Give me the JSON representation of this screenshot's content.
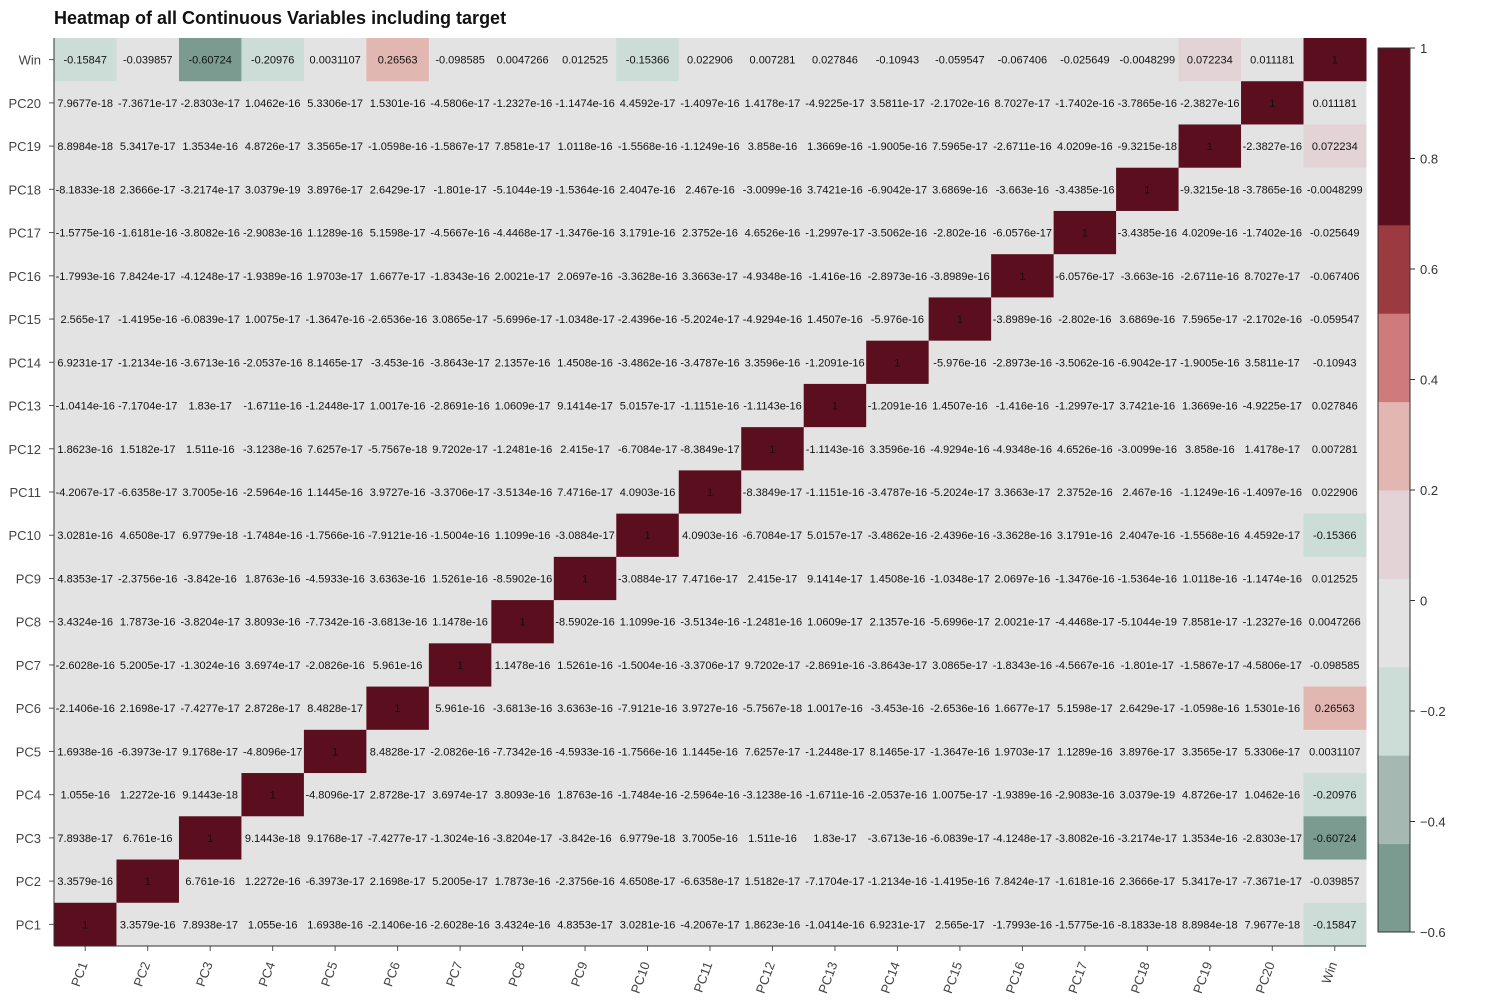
{
  "chart_data": {
    "type": "heatmap",
    "title": "Heatmap of all Continuous Variables including target",
    "x_labels": [
      "PC1",
      "PC2",
      "PC3",
      "PC4",
      "PC5",
      "PC6",
      "PC7",
      "PC8",
      "PC9",
      "PC10",
      "PC11",
      "PC12",
      "PC13",
      "PC14",
      "PC15",
      "PC16",
      "PC17",
      "PC18",
      "PC19",
      "PC20",
      "Win"
    ],
    "y_labels_top_to_bottom": [
      "Win",
      "PC20",
      "PC19",
      "PC18",
      "PC17",
      "PC16",
      "PC15",
      "PC14",
      "PC13",
      "PC12",
      "PC11",
      "PC10",
      "PC9",
      "PC8",
      "PC7",
      "PC6",
      "PC5",
      "PC4",
      "PC3",
      "PC2",
      "PC1"
    ],
    "rows": [
      [
        "-0.15847",
        "-0.039857",
        "-0.60724",
        "-0.20976",
        "0.0031107",
        "0.26563",
        "-0.098585",
        "0.0047266",
        "0.012525",
        "-0.15366",
        "0.022906",
        "0.007281",
        "0.027846",
        "-0.10943",
        "-0.059547",
        "-0.067406",
        "-0.025649",
        "-0.0048299",
        "0.072234",
        "0.011181",
        "1"
      ],
      [
        "7.9677e-18",
        "-7.3671e-17",
        "-2.8303e-17",
        "1.0462e-16",
        "5.3306e-17",
        "1.5301e-16",
        "-4.5806e-17",
        "-1.2327e-16",
        "-1.1474e-16",
        "4.4592e-17",
        "-1.4097e-16",
        "1.4178e-17",
        "-4.9225e-17",
        "3.5811e-17",
        "-2.1702e-16",
        "8.7027e-17",
        "-1.7402e-16",
        "-3.7865e-16",
        "-2.3827e-16",
        "1",
        "0.011181"
      ],
      [
        "8.8984e-18",
        "5.3417e-17",
        "1.3534e-16",
        "4.8726e-17",
        "3.3565e-17",
        "-1.0598e-16",
        "-1.5867e-17",
        "7.8581e-17",
        "1.0118e-16",
        "-1.5568e-16",
        "-1.1249e-16",
        "3.858e-16",
        "1.3669e-16",
        "-1.9005e-16",
        "7.5965e-17",
        "-2.6711e-16",
        "4.0209e-16",
        "-9.3215e-18",
        "1",
        "-2.3827e-16",
        "0.072234"
      ],
      [
        "-8.1833e-18",
        "2.3666e-17",
        "-3.2174e-17",
        "3.0379e-19",
        "3.8976e-17",
        "2.6429e-17",
        "-1.801e-17",
        "-5.1044e-19",
        "-1.5364e-16",
        "2.4047e-16",
        "2.467e-16",
        "-3.0099e-16",
        "3.7421e-16",
        "-6.9042e-17",
        "3.6869e-16",
        "-3.663e-16",
        "-3.4385e-16",
        "1",
        "-9.3215e-18",
        "-3.7865e-16",
        "-0.0048299"
      ],
      [
        "-1.5775e-16",
        "-1.6181e-16",
        "-3.8082e-16",
        "-2.9083e-16",
        "1.1289e-16",
        "5.1598e-17",
        "-4.5667e-16",
        "-4.4468e-17",
        "-1.3476e-16",
        "3.1791e-16",
        "2.3752e-16",
        "4.6526e-16",
        "-1.2997e-17",
        "-3.5062e-16",
        "-2.802e-16",
        "-6.0576e-17",
        "1",
        "-3.4385e-16",
        "4.0209e-16",
        "-1.7402e-16",
        "-0.025649"
      ],
      [
        "-1.7993e-16",
        "7.8424e-17",
        "-4.1248e-17",
        "-1.9389e-16",
        "1.9703e-17",
        "1.6677e-17",
        "-1.8343e-16",
        "2.0021e-17",
        "2.0697e-16",
        "-3.3628e-16",
        "3.3663e-17",
        "-4.9348e-16",
        "-1.416e-16",
        "-2.8973e-16",
        "-3.8989e-16",
        "1",
        "-6.0576e-17",
        "-3.663e-16",
        "-2.6711e-16",
        "8.7027e-17",
        "-0.067406"
      ],
      [
        "2.565e-17",
        "-1.4195e-16",
        "-6.0839e-17",
        "1.0075e-17",
        "-1.3647e-16",
        "-2.6536e-16",
        "3.0865e-17",
        "-5.6996e-17",
        "-1.0348e-17",
        "-2.4396e-16",
        "-5.2024e-17",
        "-4.9294e-16",
        "1.4507e-16",
        "-5.976e-16",
        "1",
        "-3.8989e-16",
        "-2.802e-16",
        "3.6869e-16",
        "7.5965e-17",
        "-2.1702e-16",
        "-0.059547"
      ],
      [
        "6.9231e-17",
        "-1.2134e-16",
        "-3.6713e-16",
        "-2.0537e-16",
        "8.1465e-17",
        "-3.453e-16",
        "-3.8643e-17",
        "2.1357e-16",
        "1.4508e-16",
        "-3.4862e-16",
        "-3.4787e-16",
        "3.3596e-16",
        "-1.2091e-16",
        "1",
        "-5.976e-16",
        "-2.8973e-16",
        "-3.5062e-16",
        "-6.9042e-17",
        "-1.9005e-16",
        "3.5811e-17",
        "-0.10943"
      ],
      [
        "-1.0414e-16",
        "-7.1704e-17",
        "1.83e-17",
        "-1.6711e-16",
        "-1.2448e-17",
        "1.0017e-16",
        "-2.8691e-16",
        "1.0609e-17",
        "9.1414e-17",
        "5.0157e-17",
        "-1.1151e-16",
        "-1.1143e-16",
        "1",
        "-1.2091e-16",
        "1.4507e-16",
        "-1.416e-16",
        "-1.2997e-17",
        "3.7421e-16",
        "1.3669e-16",
        "-4.9225e-17",
        "0.027846"
      ],
      [
        "1.8623e-16",
        "1.5182e-17",
        "1.511e-16",
        "-3.1238e-16",
        "7.6257e-17",
        "-5.7567e-18",
        "9.7202e-17",
        "-1.2481e-16",
        "2.415e-17",
        "-6.7084e-17",
        "-8.3849e-17",
        "1",
        "-1.1143e-16",
        "3.3596e-16",
        "-4.9294e-16",
        "-4.9348e-16",
        "4.6526e-16",
        "-3.0099e-16",
        "3.858e-16",
        "1.4178e-17",
        "0.007281"
      ],
      [
        "-4.2067e-17",
        "-6.6358e-17",
        "3.7005e-16",
        "-2.5964e-16",
        "1.1445e-16",
        "3.9727e-16",
        "-3.3706e-17",
        "-3.5134e-16",
        "7.4716e-17",
        "4.0903e-16",
        "1",
        "-8.3849e-17",
        "-1.1151e-16",
        "-3.4787e-16",
        "-5.2024e-17",
        "3.3663e-17",
        "2.3752e-16",
        "2.467e-16",
        "-1.1249e-16",
        "-1.4097e-16",
        "0.022906"
      ],
      [
        "3.0281e-16",
        "4.6508e-17",
        "6.9779e-18",
        "-1.7484e-16",
        "-1.7566e-16",
        "-7.9121e-16",
        "-1.5004e-16",
        "1.1099e-16",
        "-3.0884e-17",
        "1",
        "4.0903e-16",
        "-6.7084e-17",
        "5.0157e-17",
        "-3.4862e-16",
        "-2.4396e-16",
        "-3.3628e-16",
        "3.1791e-16",
        "2.4047e-16",
        "-1.5568e-16",
        "4.4592e-17",
        "-0.15366"
      ],
      [
        "4.8353e-17",
        "-2.3756e-16",
        "-3.842e-16",
        "1.8763e-16",
        "-4.5933e-16",
        "3.6363e-16",
        "1.5261e-16",
        "-8.5902e-16",
        "1",
        "-3.0884e-17",
        "7.4716e-17",
        "2.415e-17",
        "9.1414e-17",
        "1.4508e-16",
        "-1.0348e-17",
        "2.0697e-16",
        "-1.3476e-16",
        "-1.5364e-16",
        "1.0118e-16",
        "-1.1474e-16",
        "0.012525"
      ],
      [
        "3.4324e-16",
        "1.7873e-16",
        "-3.8204e-17",
        "3.8093e-16",
        "-7.7342e-16",
        "-3.6813e-16",
        "1.1478e-16",
        "1",
        "-8.5902e-16",
        "1.1099e-16",
        "-3.5134e-16",
        "-1.2481e-16",
        "1.0609e-17",
        "2.1357e-16",
        "-5.6996e-17",
        "2.0021e-17",
        "-4.4468e-17",
        "-5.1044e-19",
        "7.8581e-17",
        "-1.2327e-16",
        "0.0047266"
      ],
      [
        "-2.6028e-16",
        "5.2005e-17",
        "-1.3024e-16",
        "3.6974e-17",
        "-2.0826e-16",
        "5.961e-16",
        "1",
        "1.1478e-16",
        "1.5261e-16",
        "-1.5004e-16",
        "-3.3706e-17",
        "9.7202e-17",
        "-2.8691e-16",
        "-3.8643e-17",
        "3.0865e-17",
        "-1.8343e-16",
        "-4.5667e-16",
        "-1.801e-17",
        "-1.5867e-17",
        "-4.5806e-17",
        "-0.098585"
      ],
      [
        "-2.1406e-16",
        "2.1698e-17",
        "-7.4277e-17",
        "2.8728e-17",
        "8.4828e-17",
        "1",
        "5.961e-16",
        "-3.6813e-16",
        "3.6363e-16",
        "-7.9121e-16",
        "3.9727e-16",
        "-5.7567e-18",
        "1.0017e-16",
        "-3.453e-16",
        "-2.6536e-16",
        "1.6677e-17",
        "5.1598e-17",
        "2.6429e-17",
        "-1.0598e-16",
        "1.5301e-16",
        "0.26563"
      ],
      [
        "1.6938e-16",
        "-6.3973e-17",
        "9.1768e-17",
        "-4.8096e-17",
        "1",
        "8.4828e-17",
        "-2.0826e-16",
        "-7.7342e-16",
        "-4.5933e-16",
        "-1.7566e-16",
        "1.1445e-16",
        "7.6257e-17",
        "-1.2448e-17",
        "8.1465e-17",
        "-1.3647e-16",
        "1.9703e-17",
        "1.1289e-16",
        "3.8976e-17",
        "3.3565e-17",
        "5.3306e-17",
        "0.0031107"
      ],
      [
        "1.055e-16",
        "1.2272e-16",
        "9.1443e-18",
        "1",
        "-4.8096e-17",
        "2.8728e-17",
        "3.6974e-17",
        "3.8093e-16",
        "1.8763e-16",
        "-1.7484e-16",
        "-2.5964e-16",
        "-3.1238e-16",
        "-1.6711e-16",
        "-2.0537e-16",
        "1.0075e-17",
        "-1.9389e-16",
        "-2.9083e-16",
        "3.0379e-19",
        "4.8726e-17",
        "1.0462e-16",
        "-0.20976"
      ],
      [
        "7.8938e-17",
        "6.761e-16",
        "1",
        "9.1443e-18",
        "9.1768e-17",
        "-7.4277e-17",
        "-1.3024e-16",
        "-3.8204e-17",
        "-3.842e-16",
        "6.9779e-18",
        "3.7005e-16",
        "1.511e-16",
        "1.83e-17",
        "-3.6713e-16",
        "-6.0839e-17",
        "-4.1248e-17",
        "-3.8082e-16",
        "-3.2174e-17",
        "1.3534e-16",
        "-2.8303e-17",
        "-0.60724"
      ],
      [
        "3.3579e-16",
        "1",
        "6.761e-16",
        "1.2272e-16",
        "-6.3973e-17",
        "2.1698e-17",
        "5.2005e-17",
        "1.7873e-16",
        "-2.3756e-16",
        "4.6508e-17",
        "-6.6358e-17",
        "1.5182e-17",
        "-7.1704e-17",
        "-1.2134e-16",
        "-1.4195e-16",
        "7.8424e-17",
        "-1.6181e-16",
        "2.3666e-17",
        "5.3417e-17",
        "-7.3671e-17",
        "-0.039857"
      ],
      [
        "1",
        "3.3579e-16",
        "7.8938e-17",
        "1.055e-16",
        "1.6938e-16",
        "-2.1406e-16",
        "-2.6028e-16",
        "3.4324e-16",
        "4.8353e-17",
        "3.0281e-16",
        "-4.2067e-17",
        "1.8623e-16",
        "-1.0414e-16",
        "6.9231e-17",
        "2.565e-17",
        "-1.7993e-16",
        "-1.5775e-16",
        "-8.1833e-18",
        "8.8984e-18",
        "7.9677e-18",
        "-0.15847"
      ]
    ],
    "colorbar": {
      "range": [
        -0.6,
        1
      ],
      "ticks": [
        "1",
        "0.8",
        "0.6",
        "0.4",
        "0.2",
        "0",
        "−0.2",
        "−0.4",
        "−0.6"
      ],
      "tick_values": [
        1,
        0.8,
        0.6,
        0.4,
        0.2,
        0,
        -0.2,
        -0.4,
        -0.6
      ],
      "bins": [
        {
          "from": -0.6,
          "to": -0.44,
          "color": "#7b9b91"
        },
        {
          "from": -0.44,
          "to": -0.28,
          "color": "#a5b9b2"
        },
        {
          "from": -0.28,
          "to": -0.12,
          "color": "#ccdcd6"
        },
        {
          "from": -0.12,
          "to": 0.04,
          "color": "#e3e3e3"
        },
        {
          "from": 0.04,
          "to": 0.2,
          "color": "#e3d3d6"
        },
        {
          "from": 0.2,
          "to": 0.36,
          "color": "#e2b7b1"
        },
        {
          "from": 0.36,
          "to": 0.52,
          "color": "#d07b7b"
        },
        {
          "from": 0.52,
          "to": 0.68,
          "color": "#9b3b40"
        },
        {
          "from": 0.68,
          "to": 1.0,
          "color": "#5a0e1e"
        }
      ]
    },
    "colors": {
      "text_dark": "#111111",
      "text_light": "#222222",
      "grid_background": "#e3e3e3"
    }
  }
}
